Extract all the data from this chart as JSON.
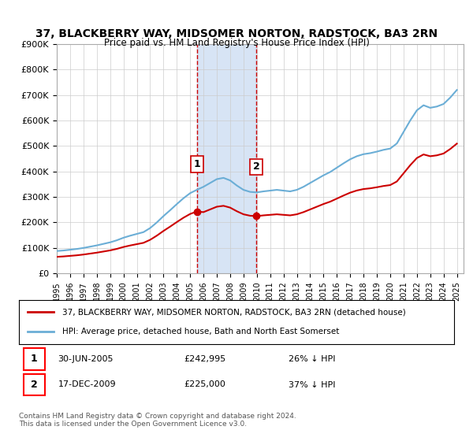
{
  "title": "37, BLACKBERRY WAY, MIDSOMER NORTON, RADSTOCK, BA3 2RN",
  "subtitle": "Price paid vs. HM Land Registry's House Price Index (HPI)",
  "ylabel": "",
  "xlabel": "",
  "ylim": [
    0,
    900000
  ],
  "yticks": [
    0,
    100000,
    200000,
    300000,
    400000,
    500000,
    600000,
    700000,
    800000,
    900000
  ],
  "ytick_labels": [
    "£0",
    "£100K",
    "£200K",
    "£300K",
    "£400K",
    "£500K",
    "£600K",
    "£700K",
    "£800K",
    "£900K"
  ],
  "xmin_year": 1995.0,
  "xmax_year": 2025.5,
  "xtick_years": [
    1995,
    1996,
    1997,
    1998,
    1999,
    2000,
    2001,
    2002,
    2003,
    2004,
    2005,
    2006,
    2007,
    2008,
    2009,
    2010,
    2011,
    2012,
    2013,
    2014,
    2015,
    2016,
    2017,
    2018,
    2019,
    2020,
    2021,
    2022,
    2023,
    2024,
    2025
  ],
  "hpi_color": "#6baed6",
  "property_color": "#cc0000",
  "vline_color": "#cc0000",
  "shade_color": "#c6d9f1",
  "transaction1_x": 2005.5,
  "transaction2_x": 2009.96,
  "transaction1_price": 242995,
  "transaction2_price": 225000,
  "legend_line1": "37, BLACKBERRY WAY, MIDSOMER NORTON, RADSTOCK, BA3 2RN (detached house)",
  "legend_line2": "HPI: Average price, detached house, Bath and North East Somerset",
  "table_row1": "1     30-JUN-2005          £242,995          26% ↓ HPI",
  "table_row2": "2     17-DEC-2009          £225,000          37% ↓ HPI",
  "footer": "Contains HM Land Registry data © Crown copyright and database right 2024.\nThis data is licensed under the Open Government Licence v3.0.",
  "background_color": "#ffffff",
  "grid_color": "#cccccc"
}
